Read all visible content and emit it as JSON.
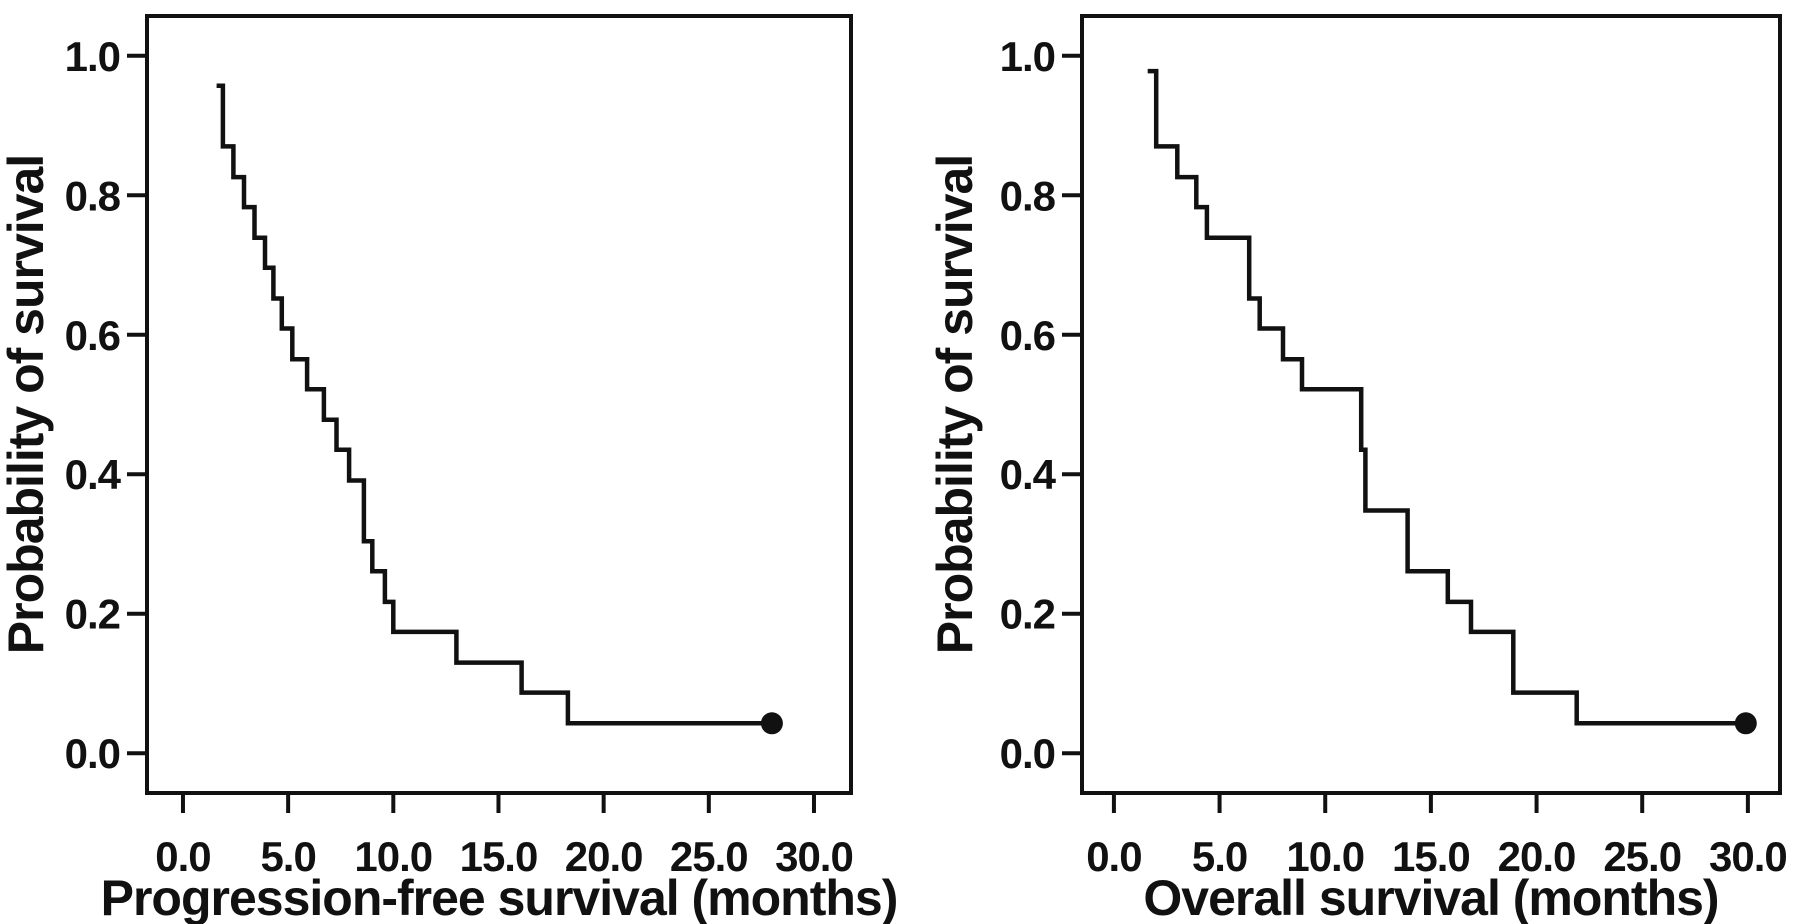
{
  "figure": {
    "background_color": "#ffffff",
    "line_color": "#111111",
    "description": "Two Kaplan-Meier survival step curves side by side",
    "censor_marker": "filled-circle"
  },
  "chart_data": [
    {
      "type": "line",
      "subtype": "kaplan_meier_step",
      "title": "",
      "xlabel": "Progression-free survival (months)",
      "ylabel": "Probability of survival",
      "xticks": [
        0,
        5,
        10,
        15,
        20,
        25,
        30
      ],
      "xtick_labels": [
        "0.0",
        "5.0",
        "10.0",
        "15.0",
        "20.0",
        "25.0",
        "30.0"
      ],
      "yticks": [
        0,
        0.2,
        0.4,
        0.6,
        0.8,
        1.0
      ],
      "ytick_labels": [
        "0.0",
        "0.2",
        "0.4",
        "0.6",
        "0.8",
        "1.0"
      ],
      "xlim": [
        -1.71,
        31.76
      ],
      "ylim": [
        -0.057,
        1.057
      ],
      "grid": false,
      "legend": false,
      "series": [
        {
          "name": "Progression-free survival",
          "color": "#111111",
          "start": [
            1.6,
            0.957
          ],
          "drops": [
            [
              1.9,
              0.87
            ],
            [
              2.4,
              0.826
            ],
            [
              2.9,
              0.783
            ],
            [
              3.4,
              0.739
            ],
            [
              3.9,
              0.696
            ],
            [
              4.3,
              0.652
            ],
            [
              4.7,
              0.609
            ],
            [
              5.2,
              0.565
            ],
            [
              5.9,
              0.522
            ],
            [
              6.7,
              0.478
            ],
            [
              7.3,
              0.435
            ],
            [
              7.9,
              0.391
            ],
            [
              8.6,
              0.304
            ],
            [
              9.0,
              0.261
            ],
            [
              9.6,
              0.217
            ],
            [
              10.0,
              0.174
            ],
            [
              13.0,
              0.13
            ],
            [
              16.1,
              0.087
            ],
            [
              18.3,
              0.043
            ]
          ],
          "censored": [
            [
              28.0,
              0.043
            ]
          ]
        }
      ]
    },
    {
      "type": "line",
      "subtype": "kaplan_meier_step",
      "title": "",
      "xlabel": "Overall survival (months)",
      "ylabel": "Probability of survival",
      "xticks": [
        0,
        5,
        10,
        15,
        20,
        25,
        30
      ],
      "xtick_labels": [
        "0.0",
        "5.0",
        "10.0",
        "15.0",
        "20.0",
        "25.0",
        "30.0"
      ],
      "yticks": [
        0,
        0.2,
        0.4,
        0.6,
        0.8,
        1.0
      ],
      "ytick_labels": [
        "0.0",
        "0.2",
        "0.4",
        "0.6",
        "0.8",
        "1.0"
      ],
      "xlim": [
        -1.51,
        31.52
      ],
      "ylim": [
        -0.057,
        1.057
      ],
      "grid": false,
      "legend": false,
      "series": [
        {
          "name": "Overall survival",
          "color": "#111111",
          "start": [
            1.6,
            0.978
          ],
          "drops": [
            [
              2.0,
              0.87
            ],
            [
              3.0,
              0.826
            ],
            [
              3.9,
              0.783
            ],
            [
              4.4,
              0.739
            ],
            [
              6.4,
              0.652
            ],
            [
              6.9,
              0.609
            ],
            [
              8.0,
              0.565
            ],
            [
              8.9,
              0.522
            ],
            [
              11.7,
              0.435
            ],
            [
              11.9,
              0.348
            ],
            [
              13.9,
              0.261
            ],
            [
              15.8,
              0.217
            ],
            [
              16.9,
              0.174
            ],
            [
              18.9,
              0.087
            ],
            [
              21.9,
              0.043
            ]
          ],
          "censored": [
            [
              29.9,
              0.043
            ]
          ]
        }
      ]
    }
  ]
}
